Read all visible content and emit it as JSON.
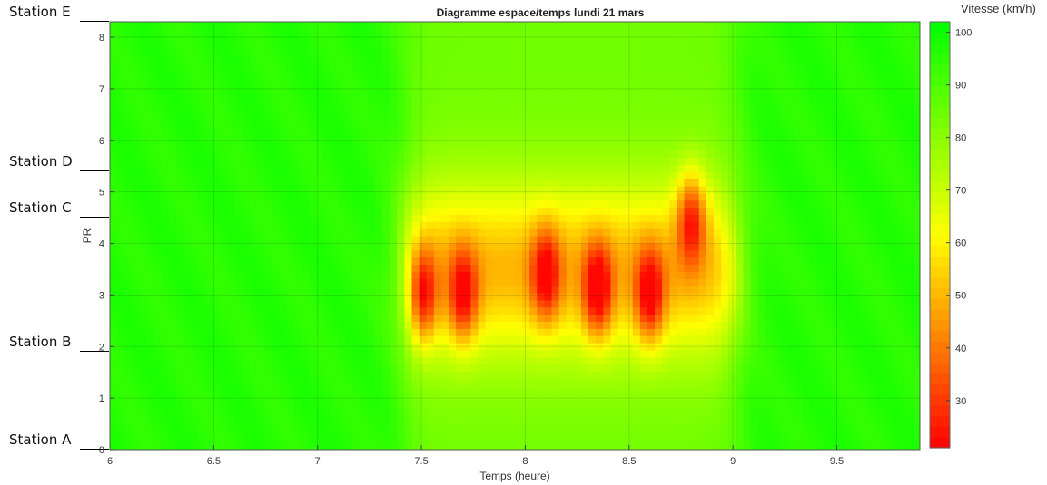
{
  "chart_data": {
    "type": "heatmap",
    "subtype": "filled-contour",
    "title": "Diagramme espace/temps lundi 21 mars",
    "xlabel": "Temps (heure)",
    "ylabel": "PR",
    "xlim": [
      6,
      9.9
    ],
    "ylim": [
      0,
      8.3
    ],
    "xticks": [
      "6",
      "6.5",
      "7",
      "7.5",
      "8",
      "8.5",
      "9",
      "9.5"
    ],
    "yticks": [
      "0",
      "1",
      "2",
      "3",
      "4",
      "5",
      "6",
      "7",
      "8"
    ],
    "grid": true,
    "colorbar": {
      "title": "Vitesse (km/h)",
      "range": [
        21,
        102
      ],
      "ticks": [
        "30",
        "40",
        "50",
        "60",
        "70",
        "80",
        "90",
        "100"
      ],
      "colors": {
        "low": "#ff0000",
        "mid": "#ffff00",
        "high": "#00ff00"
      }
    },
    "stations": [
      {
        "label": "Station E",
        "pr": 8.3
      },
      {
        "label": "Station D",
        "pr": 5.4
      },
      {
        "label": "Station C",
        "pr": 4.5
      },
      {
        "label": "Station B",
        "pr": 1.9
      },
      {
        "label": "Station A",
        "pr": 0.0
      }
    ],
    "congestion_minima": [
      {
        "t": 7.5,
        "pr": 3.0,
        "speed": 23
      },
      {
        "t": 7.7,
        "pr": 3.0,
        "speed": 33
      },
      {
        "t": 8.1,
        "pr": 3.4,
        "speed": 33
      },
      {
        "t": 8.35,
        "pr": 3.1,
        "speed": 26
      },
      {
        "t": 8.6,
        "pr": 3.0,
        "speed": 30
      },
      {
        "t": 8.8,
        "pr": 4.5,
        "speed": 33
      }
    ]
  }
}
